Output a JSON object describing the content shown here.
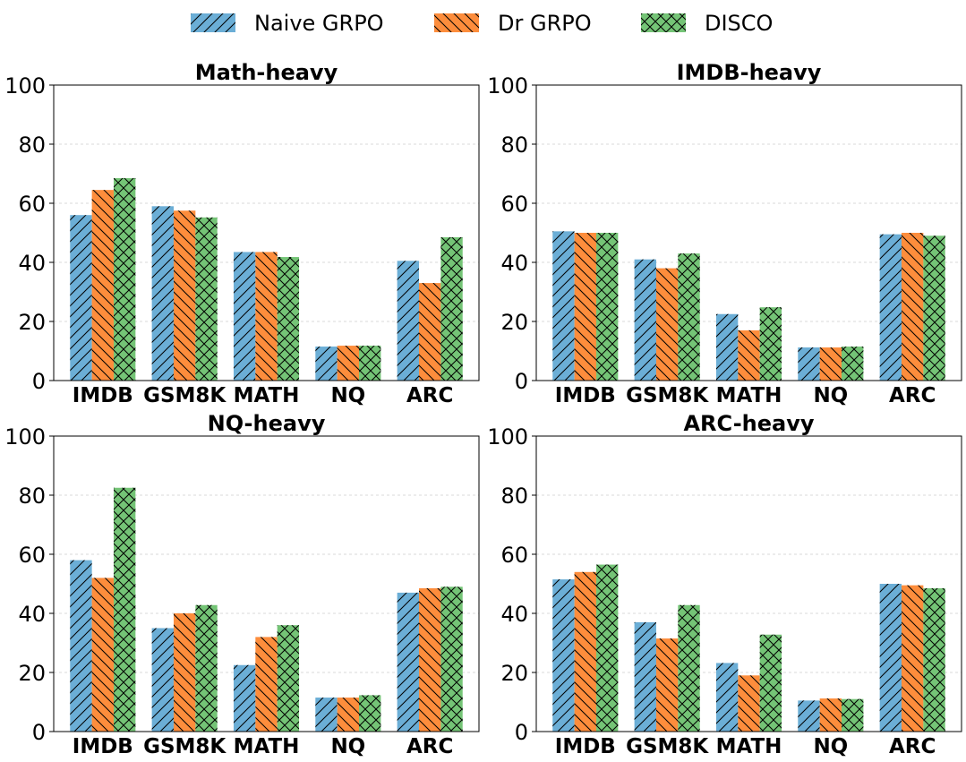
{
  "colors": {
    "Naive GRPO": "#6baed6",
    "Dr GRPO": "#fd8d3c",
    "DISCO": "#74c476"
  },
  "legend": [
    "Naive GRPO",
    "Dr GRPO",
    "DISCO"
  ],
  "chart_data": [
    {
      "type": "bar",
      "title": "Math-heavy",
      "categories": [
        "IMDB",
        "GSM8K",
        "MATH",
        "NQ",
        "ARC"
      ],
      "ylim": [
        0,
        100
      ],
      "yticks": [
        0,
        20,
        40,
        60,
        80,
        100
      ],
      "grid": true,
      "series": [
        {
          "name": "Naive GRPO",
          "values": [
            56,
            59,
            43.5,
            11.5,
            40.5
          ]
        },
        {
          "name": "Dr GRPO",
          "values": [
            64.5,
            57.5,
            43.5,
            11.8,
            33
          ]
        },
        {
          "name": "DISCO",
          "values": [
            68.5,
            55.2,
            41.8,
            11.8,
            48.5
          ]
        }
      ]
    },
    {
      "type": "bar",
      "title": "IMDB-heavy",
      "categories": [
        "IMDB",
        "GSM8K",
        "MATH",
        "NQ",
        "ARC"
      ],
      "ylim": [
        0,
        100
      ],
      "yticks": [
        0,
        20,
        40,
        60,
        80,
        100
      ],
      "grid": true,
      "series": [
        {
          "name": "Naive GRPO",
          "values": [
            50.5,
            41,
            22.5,
            11.2,
            49.5
          ]
        },
        {
          "name": "Dr GRPO",
          "values": [
            50,
            38,
            17,
            11.2,
            50
          ]
        },
        {
          "name": "DISCO",
          "values": [
            50,
            43,
            24.8,
            11.5,
            49
          ]
        }
      ]
    },
    {
      "type": "bar",
      "title": "NQ-heavy",
      "categories": [
        "IMDB",
        "GSM8K",
        "MATH",
        "NQ",
        "ARC"
      ],
      "ylim": [
        0,
        100
      ],
      "yticks": [
        0,
        20,
        40,
        60,
        80,
        100
      ],
      "grid": true,
      "series": [
        {
          "name": "Naive GRPO",
          "values": [
            58,
            35,
            22.5,
            11.5,
            47
          ]
        },
        {
          "name": "Dr GRPO",
          "values": [
            52,
            40,
            32,
            11.5,
            48.5
          ]
        },
        {
          "name": "DISCO",
          "values": [
            82.5,
            42.8,
            36,
            12.3,
            49
          ]
        }
      ]
    },
    {
      "type": "bar",
      "title": "ARC-heavy",
      "categories": [
        "IMDB",
        "GSM8K",
        "MATH",
        "NQ",
        "ARC"
      ],
      "ylim": [
        0,
        100
      ],
      "yticks": [
        0,
        20,
        40,
        60,
        80,
        100
      ],
      "grid": true,
      "series": [
        {
          "name": "Naive GRPO",
          "values": [
            51.5,
            37,
            23.2,
            10.5,
            50
          ]
        },
        {
          "name": "Dr GRPO",
          "values": [
            54,
            31.5,
            19,
            11.2,
            49.5
          ]
        },
        {
          "name": "DISCO",
          "values": [
            56.5,
            42.8,
            32.8,
            11,
            48.5
          ]
        }
      ]
    }
  ]
}
